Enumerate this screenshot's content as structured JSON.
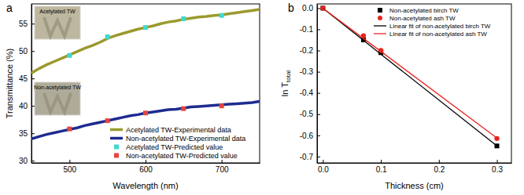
{
  "chart_data": [
    {
      "type": "line",
      "panel_label": "a",
      "x_label": "Wavelength (nm)",
      "y_label": "Transmittance (%)",
      "annotations": [
        "Acetylated TW",
        "Non-acetylated TW"
      ],
      "x": [
        450,
        460,
        470,
        480,
        490,
        500,
        510,
        520,
        530,
        540,
        550,
        560,
        570,
        580,
        590,
        600,
        610,
        620,
        630,
        640,
        650,
        660,
        670,
        680,
        690,
        700,
        710,
        720,
        730,
        740,
        750
      ],
      "series": [
        {
          "name": "Acetylated TW-Experimental data",
          "color": "#9b9a2c",
          "type": "line",
          "values": [
            46.0,
            46.8,
            47.5,
            48.1,
            48.7,
            49.3,
            49.9,
            50.5,
            51.0,
            51.6,
            52.3,
            52.8,
            53.2,
            53.6,
            54.0,
            54.3,
            54.6,
            55.0,
            55.3,
            55.5,
            55.8,
            56.0,
            56.2,
            56.3,
            56.5,
            56.6,
            56.8,
            57.0,
            57.2,
            57.4,
            57.6
          ]
        },
        {
          "name": "Non-acetylated TW-Experimental data",
          "color": "#1e2b8f",
          "type": "line",
          "values": [
            34.0,
            34.4,
            34.8,
            35.1,
            35.4,
            35.7,
            36.0,
            36.4,
            36.7,
            37.0,
            37.3,
            37.6,
            37.9,
            38.2,
            38.4,
            38.7,
            38.9,
            39.1,
            39.3,
            39.4,
            39.6,
            39.8,
            39.9,
            40.0,
            40.1,
            40.2,
            40.3,
            40.4,
            40.5,
            40.6,
            40.8
          ]
        },
        {
          "name": "Acetylated TW-Predicted value",
          "color": "#40d8d0",
          "type": "scatter",
          "marker": "square",
          "values": [
            null,
            null,
            null,
            null,
            null,
            49.2,
            null,
            null,
            null,
            null,
            52.6,
            null,
            null,
            null,
            null,
            54.3,
            null,
            null,
            null,
            null,
            55.9,
            null,
            null,
            null,
            null,
            56.5,
            null,
            null,
            null,
            null,
            null
          ]
        },
        {
          "name": "Non-acetylated TW-Predicted value",
          "color": "#e5463c",
          "type": "scatter",
          "marker": "square",
          "values": [
            null,
            null,
            null,
            null,
            null,
            35.8,
            null,
            null,
            null,
            null,
            37.3,
            null,
            null,
            null,
            null,
            38.7,
            null,
            null,
            null,
            null,
            39.5,
            null,
            null,
            null,
            null,
            40.0,
            null,
            null,
            null,
            null,
            null
          ]
        }
      ],
      "xlim": [
        450,
        750
      ],
      "xticks": [
        500,
        600,
        700
      ],
      "ylim": [
        29.6,
        58.6
      ],
      "yticks": [
        30,
        35,
        40,
        45,
        50,
        55
      ],
      "legend": "lower right"
    },
    {
      "type": "scatter",
      "panel_label": "b",
      "x_label": "Thickness (cm)",
      "y_label": {
        "text": "ln T",
        "subscript": "total"
      },
      "x": [
        0,
        0.07,
        0.1,
        0.3
      ],
      "series": [
        {
          "name": "Non-acetylated birch TW",
          "color": "#000000",
          "type": "scatter",
          "marker": "square",
          "values": [
            0,
            -0.15,
            -0.21,
            -0.65
          ]
        },
        {
          "name": "Non-acetylated ash TW",
          "color": "#e8251f",
          "type": "scatter",
          "marker": "circle",
          "values": [
            0,
            -0.13,
            -0.2,
            -0.615
          ]
        },
        {
          "name": "Linear fit of non-acetylated birch TW",
          "color": "#000000",
          "type": "line",
          "values": [
            0,
            -0.152,
            -0.217,
            -0.65
          ]
        },
        {
          "name": "Linear fit of non-acetylated ash TW",
          "color": "#e8251f",
          "type": "line",
          "values": [
            0,
            -0.143,
            -0.204,
            -0.613
          ]
        }
      ],
      "xlim": [
        -0.01,
        0.325
      ],
      "xticks": [
        {
          "value": 0,
          "label": "0.0"
        },
        0.1,
        0.2,
        0.3
      ],
      "ylim": [
        -0.73,
        0.02
      ],
      "yticks": [
        {
          "value": 0,
          "label": "0.0"
        },
        -0.1,
        -0.2,
        -0.3,
        -0.4,
        -0.5,
        -0.6,
        -0.7
      ],
      "legend": "upper right"
    }
  ]
}
